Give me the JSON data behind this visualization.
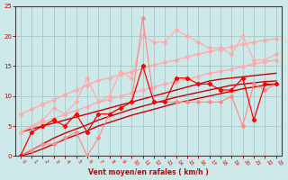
{
  "background_color": "#cce8e8",
  "grid_color": "#aacccc",
  "xlabel": "Vent moyen/en rafales ( km/h )",
  "xlabel_color": "#cc0000",
  "tick_color": "#cc0000",
  "xlim": [
    -0.5,
    23.5
  ],
  "ylim": [
    0,
    25
  ],
  "xticks": [
    0,
    1,
    2,
    3,
    4,
    5,
    6,
    7,
    8,
    9,
    10,
    11,
    12,
    13,
    14,
    15,
    16,
    17,
    18,
    19,
    20,
    21,
    22,
    23
  ],
  "yticks": [
    0,
    5,
    10,
    15,
    20,
    25
  ],
  "lines": [
    {
      "x": [
        0,
        1,
        2,
        3,
        4,
        5,
        6,
        7,
        8,
        9,
        10,
        11,
        12,
        13,
        14,
        15,
        16,
        17,
        18,
        19,
        20,
        21,
        22,
        23
      ],
      "y": [
        7,
        7.8,
        8.6,
        9.4,
        10.2,
        11.0,
        11.8,
        12.6,
        13.0,
        13.6,
        14.0,
        14.6,
        15.2,
        15.6,
        16.0,
        16.5,
        17.0,
        17.4,
        17.8,
        18.2,
        18.6,
        19.0,
        19.3,
        19.6
      ],
      "color": "#ffaaaa",
      "lw": 1.0,
      "marker": "D",
      "ms": 2.0
    },
    {
      "x": [
        0,
        1,
        2,
        3,
        4,
        5,
        6,
        7,
        8,
        9,
        10,
        11,
        12,
        13,
        14,
        15,
        16,
        17,
        18,
        19,
        20,
        21,
        22,
        23
      ],
      "y": [
        4,
        4.8,
        5.6,
        6.2,
        7.0,
        7.6,
        8.2,
        9.0,
        9.4,
        10.0,
        10.5,
        11.0,
        11.5,
        12.0,
        12.4,
        12.8,
        13.3,
        13.8,
        14.1,
        14.5,
        14.9,
        15.3,
        15.7,
        16.0
      ],
      "color": "#ffaaaa",
      "lw": 1.0,
      "marker": "D",
      "ms": 2.0
    },
    {
      "x": [
        0,
        1,
        2,
        3,
        4,
        5,
        6,
        7,
        8,
        9,
        10,
        11,
        12,
        13,
        14,
        15,
        16,
        17,
        18,
        19,
        20,
        21,
        22,
        23
      ],
      "y": [
        4,
        5,
        6,
        8,
        7,
        9,
        13,
        9,
        10,
        14,
        13,
        20,
        19,
        19,
        21,
        20,
        19,
        18,
        18,
        17,
        20,
        16,
        16,
        17
      ],
      "color": "#ffaaaa",
      "lw": 0.8,
      "marker": "D",
      "ms": 2.0
    },
    {
      "x": [
        0,
        1,
        2,
        3,
        4,
        5,
        6,
        7,
        8,
        9,
        10,
        11,
        12,
        13,
        14,
        15,
        16,
        17,
        18,
        19,
        20,
        21,
        22,
        23
      ],
      "y": [
        0,
        1,
        2,
        2,
        3,
        4,
        0,
        3,
        7,
        8,
        9,
        23,
        9,
        9,
        9,
        9,
        9,
        9,
        9,
        10,
        5,
        12,
        11,
        12
      ],
      "color": "#ff8888",
      "lw": 0.8,
      "marker": "D",
      "ms": 2.0
    },
    {
      "x": [
        0,
        1,
        2,
        3,
        4,
        5,
        6,
        7,
        8,
        9,
        10,
        11,
        12,
        13,
        14,
        15,
        16,
        17,
        18,
        19,
        20,
        21,
        22,
        23
      ],
      "y": [
        0,
        0.5,
        1.2,
        2.0,
        2.8,
        3.5,
        4.2,
        5.0,
        5.6,
        6.2,
        6.8,
        7.3,
        7.8,
        8.3,
        8.8,
        9.2,
        9.6,
        10.0,
        10.4,
        10.8,
        11.2,
        11.5,
        11.8,
        12.0
      ],
      "color": "#cc0000",
      "lw": 1.0,
      "marker": null
    },
    {
      "x": [
        0,
        1,
        2,
        3,
        4,
        5,
        6,
        7,
        8,
        9,
        10,
        11,
        12,
        13,
        14,
        15,
        16,
        17,
        18,
        19,
        20,
        21,
        22,
        23
      ],
      "y": [
        0,
        1.0,
        2.0,
        3.0,
        3.8,
        4.5,
        5.2,
        6.0,
        6.6,
        7.2,
        7.8,
        8.3,
        8.8,
        9.3,
        9.8,
        10.2,
        10.6,
        11.0,
        11.4,
        11.8,
        12.0,
        12.2,
        12.4,
        12.5
      ],
      "color": "#cc0000",
      "lw": 1.0,
      "marker": null
    },
    {
      "x": [
        0,
        1,
        2,
        3,
        4,
        5,
        6,
        7,
        8,
        9,
        10,
        11,
        12,
        13,
        14,
        15,
        16,
        17,
        18,
        19,
        20,
        21,
        22,
        23
      ],
      "y": [
        4,
        4.5,
        5.0,
        5.5,
        6.0,
        6.5,
        7.0,
        7.5,
        8.0,
        8.5,
        9.0,
        9.5,
        10.0,
        10.5,
        11.0,
        11.5,
        12.0,
        12.5,
        12.8,
        13.0,
        13.2,
        13.4,
        13.6,
        13.8
      ],
      "color": "#cc0000",
      "lw": 1.0,
      "marker": null
    },
    {
      "x": [
        0,
        1,
        2,
        3,
        4,
        5,
        6,
        7,
        8,
        9,
        10,
        11,
        12,
        13,
        14,
        15,
        16,
        17,
        18,
        19,
        20,
        21,
        22,
        23
      ],
      "y": [
        0,
        4,
        5,
        6,
        5,
        7,
        4,
        7,
        7,
        8,
        9,
        15,
        9,
        9,
        13,
        13,
        12,
        12,
        11,
        11,
        13,
        6,
        12,
        12
      ],
      "color": "#ff0000",
      "lw": 0.9,
      "marker": "D",
      "ms": 2.2
    }
  ]
}
